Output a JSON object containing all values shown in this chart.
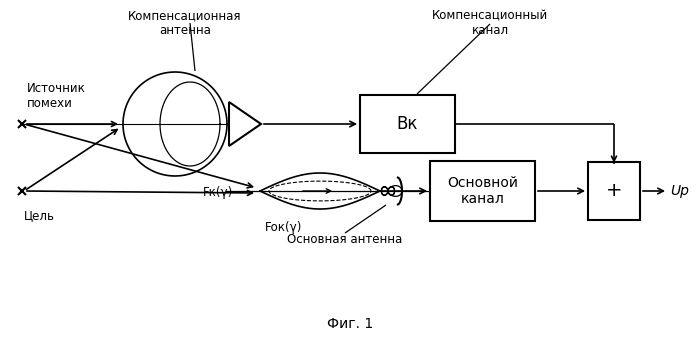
{
  "title": "Фиг. 1",
  "bg_color": "#ffffff",
  "label_kompens_ant": "Компенсационная\nантенна",
  "label_kompens_kanal": "Компенсационный\nканал",
  "label_vk": "Вк",
  "label_osnov_kanal": "Основной\nканал",
  "label_plus": "+",
  "label_up": "Uр",
  "label_istochnik": "Источник\nпомехи",
  "label_tsel": "Цель",
  "label_fk": "Fк(γ)",
  "label_fok": "Fок(γ)",
  "label_osnov_ant": "Основная антенна",
  "line_color": "#000000",
  "text_color": "#000000"
}
